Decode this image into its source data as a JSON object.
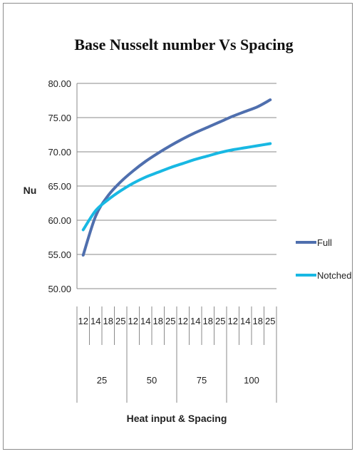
{
  "chart_data": {
    "type": "line",
    "title": "Base Nusselt number Vs Spacing",
    "xlabel": "Heat input & Spacing",
    "ylabel": "Nu",
    "ylim": [
      50,
      80
    ],
    "yticks": [
      "50.00",
      "55.00",
      "60.00",
      "65.00",
      "70.00",
      "75.00",
      "80.00"
    ],
    "grid": true,
    "legend_position": "right",
    "categories": [
      "12",
      "14",
      "18",
      "25",
      "12",
      "14",
      "18",
      "25",
      "12",
      "14",
      "18",
      "25",
      "12",
      "14",
      "18",
      "25"
    ],
    "groups": [
      {
        "label": "25"
      },
      {
        "label": "50"
      },
      {
        "label": "75"
      },
      {
        "label": "100"
      }
    ],
    "series": [
      {
        "name": "Full",
        "color": "#4F6FAE",
        "values": [
          54.9,
          60.6,
          63.6,
          65.6,
          67.2,
          68.6,
          69.8,
          70.9,
          71.9,
          72.8,
          73.6,
          74.4,
          75.2,
          75.9,
          76.6,
          77.6
        ]
      },
      {
        "name": "Notched",
        "color": "#18B8E3",
        "values": [
          58.6,
          61.4,
          63.0,
          64.3,
          65.4,
          66.3,
          67.0,
          67.7,
          68.3,
          68.9,
          69.4,
          69.9,
          70.3,
          70.6,
          70.9,
          71.2
        ]
      }
    ]
  }
}
